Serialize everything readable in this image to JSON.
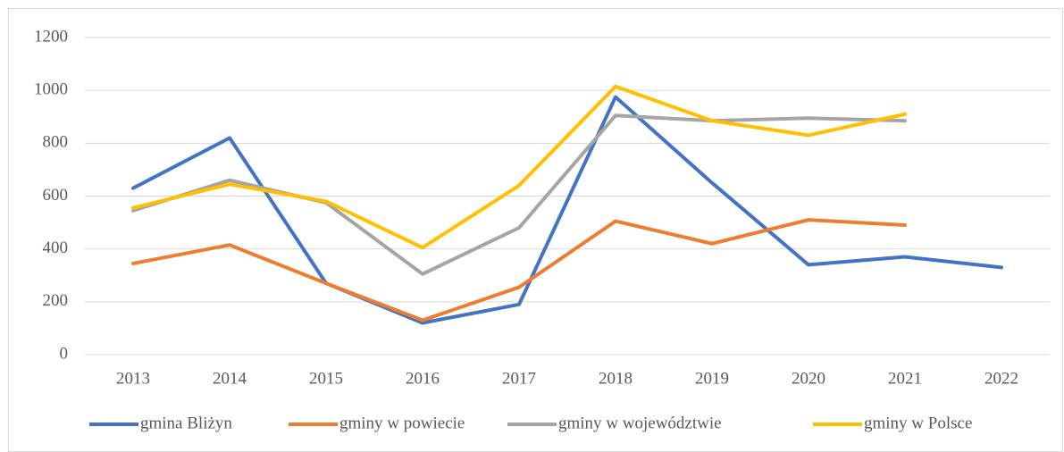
{
  "chart_data": {
    "type": "line",
    "categories": [
      "2013",
      "2014",
      "2015",
      "2016",
      "2017",
      "2018",
      "2019",
      "2020",
      "2021",
      "2022"
    ],
    "series": [
      {
        "name": "gmina Bliżyn",
        "color": "#4472c4",
        "values": [
          630,
          820,
          270,
          120,
          190,
          975,
          650,
          340,
          370,
          330
        ]
      },
      {
        "name": "gminy w powiecie",
        "color": "#ed7d31",
        "values": [
          345,
          415,
          270,
          130,
          255,
          505,
          420,
          510,
          490,
          null
        ]
      },
      {
        "name": "gminy w województwie",
        "color": "#a5a5a5",
        "values": [
          545,
          660,
          575,
          305,
          480,
          905,
          885,
          895,
          885,
          null
        ]
      },
      {
        "name": "gminy w Polsce",
        "color": "#ffc000",
        "values": [
          555,
          645,
          580,
          405,
          640,
          1015,
          885,
          830,
          910,
          null
        ]
      }
    ],
    "ylim": [
      0,
      1200
    ],
    "yticks": [
      0,
      200,
      400,
      600,
      800,
      1000,
      1200
    ],
    "grid": true,
    "legend": "bottom"
  }
}
